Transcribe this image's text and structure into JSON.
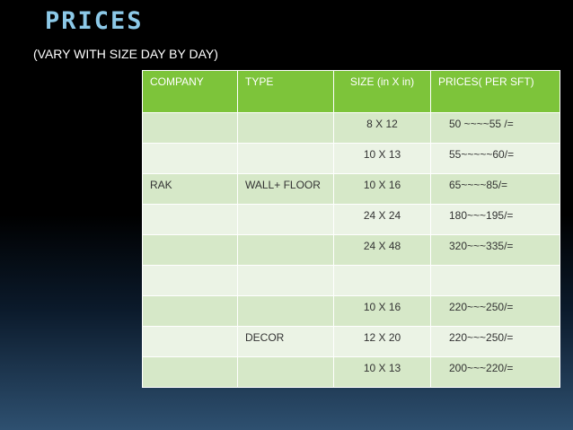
{
  "title": "PRICES",
  "subtitle": "(VARY WITH SIZE DAY BY DAY)",
  "table": {
    "headers": [
      "COMPANY",
      "TYPE",
      "SIZE (in X in)",
      "PRICES( PER SFT)"
    ],
    "rows": [
      [
        "",
        "",
        "8 X 12",
        "50 ~~~~55 /="
      ],
      [
        "",
        "",
        "10 X 13",
        "55~~~~~60/="
      ],
      [
        "RAK",
        "WALL+ FLOOR",
        "10 X 16",
        "65~~~~85/="
      ],
      [
        "",
        "",
        "24 X 24",
        "180~~~195/="
      ],
      [
        "",
        "",
        "24 X 48",
        "320~~~335/="
      ],
      [
        "",
        "",
        "",
        ""
      ],
      [
        "",
        "",
        "10 X 16",
        "220~~~250/="
      ],
      [
        "",
        "DECOR",
        "12 X 20",
        "220~~~250/="
      ],
      [
        "",
        "",
        "10 X 13",
        "200~~~220/="
      ]
    ]
  }
}
